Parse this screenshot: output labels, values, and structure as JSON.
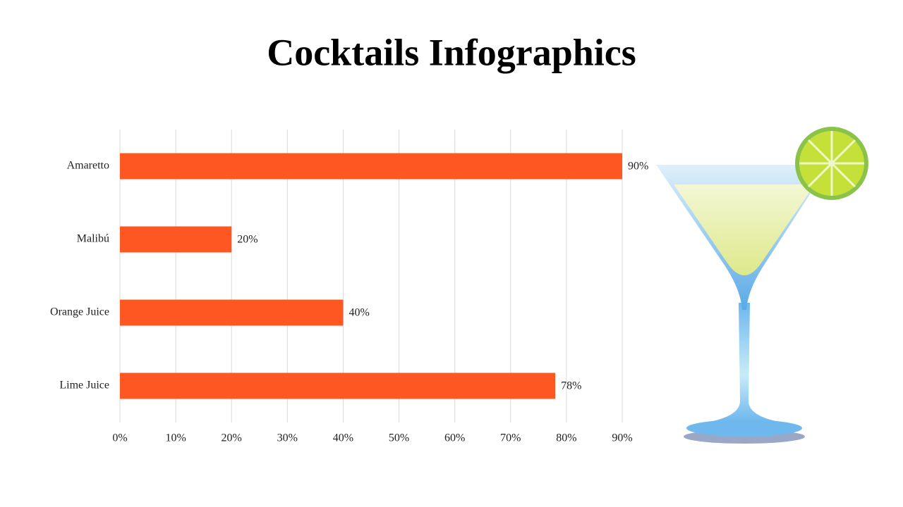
{
  "chart_data": {
    "type": "hbar",
    "title": "Cocktails Infographics",
    "categories": [
      "Amaretto",
      "Malibú",
      "Orange Juice",
      "Lime Juice"
    ],
    "values": [
      90,
      20,
      40,
      78
    ],
    "value_labels": [
      "90%",
      "20%",
      "40%",
      "78%"
    ],
    "color": "#ff5722",
    "xlim": [
      0,
      90
    ],
    "xticks": [
      {
        "value": 0,
        "label": "0%"
      },
      {
        "value": 10,
        "label": "10%"
      },
      {
        "value": 20,
        "label": "20%"
      },
      {
        "value": 30,
        "label": "30%"
      },
      {
        "value": 40,
        "label": "40%"
      },
      {
        "value": 50,
        "label": "50%"
      },
      {
        "value": 60,
        "label": "60%"
      },
      {
        "value": 70,
        "label": "70%"
      },
      {
        "value": 80,
        "label": "80%"
      },
      {
        "value": 90,
        "label": "90%"
      }
    ],
    "grid": true
  }
}
